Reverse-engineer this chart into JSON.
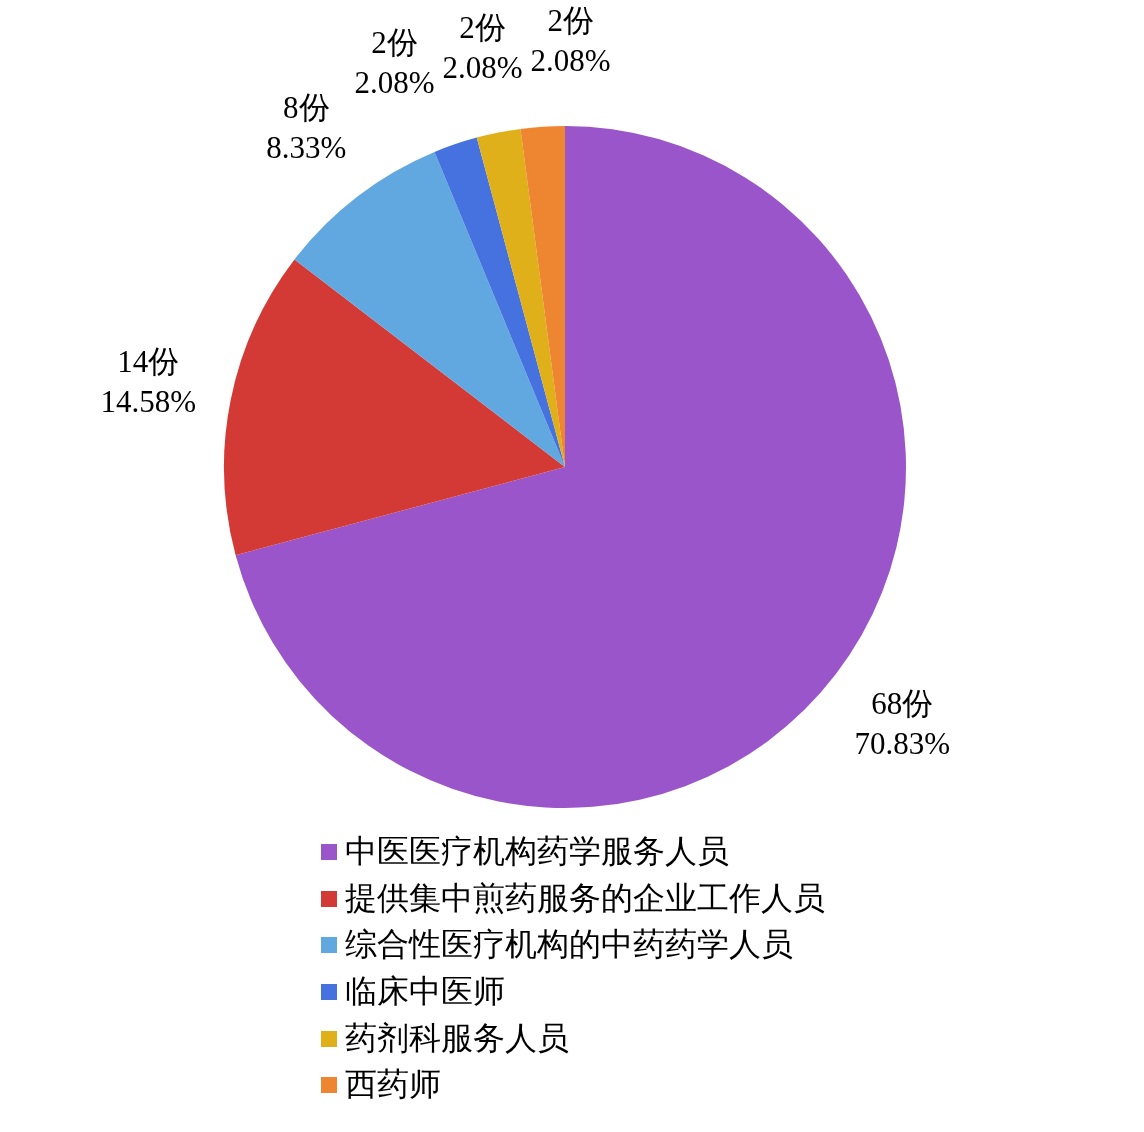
{
  "chart_data": {
    "type": "pie",
    "categories": [
      "中医医疗机构药学服务人员",
      "提供集中煎药服务的企业工作人员",
      "综合性医疗机构的中药药学人员",
      "临床中医师",
      "药剂科服务人员",
      "西药师"
    ],
    "values": [
      68,
      14,
      8,
      2,
      2,
      2
    ],
    "colors": [
      "#9955c9",
      "#d43a35",
      "#62a8e0",
      "#4672e0",
      "#e0b01a",
      "#ee8530"
    ],
    "value_labels": [
      "68份\n70.83%",
      "14份\n14.58%",
      "8份\n8.33%",
      "2份\n2.08%",
      "2份\n2.08%",
      "2份\n2.08%"
    ],
    "legend": "bottom"
  }
}
